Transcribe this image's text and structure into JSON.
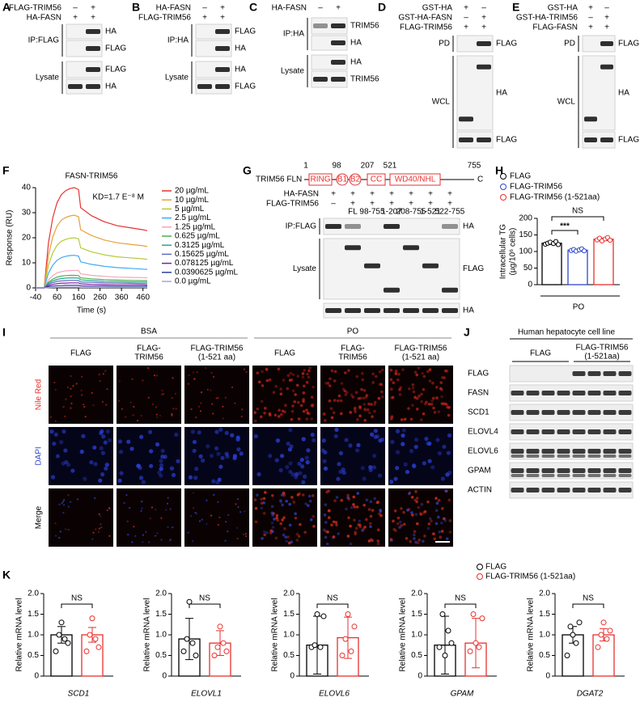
{
  "blots": [
    {
      "panel": "A",
      "conditions": [
        {
          "name": "FLAG-TRIM56",
          "signs": [
            "–",
            "+"
          ]
        },
        {
          "name": "HA-FASN",
          "signs": [
            "+",
            "+"
          ]
        }
      ],
      "groups": [
        {
          "name": "IP:FLAG",
          "bands": [
            "HA",
            "FLAG"
          ]
        },
        {
          "name": "Lysate",
          "bands": [
            "FLAG",
            "HA"
          ]
        }
      ]
    },
    {
      "panel": "B",
      "conditions": [
        {
          "name": "HA-FASN",
          "signs": [
            "–",
            "+"
          ]
        },
        {
          "name": "FLAG-TRIM56",
          "signs": [
            "+",
            "+"
          ]
        }
      ],
      "groups": [
        {
          "name": "IP:HA",
          "bands": [
            "FLAG",
            "HA"
          ]
        },
        {
          "name": "Lysate",
          "bands": [
            "HA",
            "FLAG"
          ]
        }
      ]
    },
    {
      "panel": "C",
      "conditions": [
        {
          "name": "HA-FASN",
          "signs": [
            "–",
            "+"
          ]
        }
      ],
      "groups": [
        {
          "name": "IP:HA",
          "bands": [
            "TRIM56",
            "HA"
          ]
        },
        {
          "name": "Lysate",
          "bands": [
            "HA",
            "TRIM56"
          ]
        }
      ]
    },
    {
      "panel": "D",
      "conditions": [
        {
          "name": "GST-HA",
          "signs": [
            "+",
            "–"
          ]
        },
        {
          "name": "GST-HA-FASN",
          "signs": [
            "–",
            "+"
          ]
        },
        {
          "name": "FLAG-TRIM56",
          "signs": [
            "+",
            "+"
          ]
        }
      ],
      "groups": [
        {
          "name": "PD",
          "bands": [
            "FLAG"
          ]
        },
        {
          "name": "WCL",
          "bands": [
            "HA",
            "FLAG"
          ]
        }
      ]
    },
    {
      "panel": "E",
      "conditions": [
        {
          "name": "GST-HA",
          "signs": [
            "+",
            "–"
          ]
        },
        {
          "name": "GST-HA-TRIM56",
          "signs": [
            "–",
            "+"
          ]
        },
        {
          "name": "FLAG-FASN",
          "signs": [
            "+",
            "+"
          ]
        }
      ],
      "groups": [
        {
          "name": "PD",
          "bands": [
            "FLAG"
          ]
        },
        {
          "name": "WCL",
          "bands": [
            "HA",
            "FLAG"
          ]
        }
      ]
    },
    {
      "panel": "G",
      "conditions": [
        {
          "name": "HA-FASN",
          "signs": [
            "+",
            "+",
            "+",
            "+",
            "+",
            "+",
            "+"
          ]
        },
        {
          "name": "FLAG-TRIM56",
          "signs": [
            "–",
            "+",
            "+",
            "+",
            "+",
            "+",
            "+"
          ]
        }
      ],
      "sub_labels": [
        "FL",
        "98-755",
        "1-207",
        "208-755",
        "1-521",
        "522-755"
      ],
      "groups": [
        {
          "name": "IP:FLAG",
          "bands": [
            "HA"
          ]
        },
        {
          "name": "Lysate",
          "bands": [
            "FLAG"
          ]
        },
        {
          "bands": [
            "HA"
          ]
        }
      ]
    }
  ],
  "panel_g_diagram": {
    "name": "TRIM56 FL",
    "n": "N",
    "c": "C",
    "domains": [
      "RING",
      "B1",
      "B2",
      "CC",
      "WD40/NHL"
    ],
    "positions": [
      "1",
      "98",
      "207",
      "521",
      "755"
    ]
  },
  "panel_i": {
    "label": "I",
    "treatments": [
      "BSA",
      "PO"
    ],
    "columns": [
      [
        "FLAG"
      ],
      [
        "FLAG-",
        "TRIM56"
      ],
      [
        "FLAG-TRIM56",
        "(1-521 aa)"
      ]
    ],
    "rows": [
      "Nile Red",
      "DAPI",
      "Merge"
    ]
  },
  "panel_j": {
    "label": "J",
    "title": "Human hepatocyte cell line",
    "groups": [
      [
        "FLAG"
      ],
      [
        "FLAG-TRIM56",
        "(1-521aa)"
      ]
    ],
    "rows": [
      "FLAG",
      "FASN",
      "SCD1",
      "ELOVL4",
      "ELOVL6",
      "GPAM",
      "ACTIN"
    ]
  },
  "panel_k": {
    "label": "K",
    "legend": [
      {
        "name": "FLAG",
        "color": "#000000"
      },
      {
        "name": "FLAG-TRIM56 (1-521aa)",
        "color": "#e8312f"
      }
    ]
  },
  "chart_data": [
    {
      "panel": "F",
      "type": "line",
      "title": "FASN-TRIM56",
      "annotation": "KD=1.7 E⁻⁸ M",
      "xlabel": "Time (s)",
      "ylabel": "Response (RU)",
      "x": [
        -40,
        0,
        20,
        40,
        60,
        80,
        100,
        120,
        140,
        160,
        170,
        220,
        280,
        340,
        400,
        460,
        480
      ],
      "xlim": [
        -40,
        480
      ],
      "xticks": [
        -40,
        60,
        160,
        260,
        360,
        460
      ],
      "ylim": [
        0,
        40
      ],
      "yticks": [
        0,
        10,
        20,
        30,
        40
      ],
      "series": [
        {
          "name": "20 µg/mL",
          "color": "#e8312f",
          "values": [
            0,
            0,
            18,
            28,
            34,
            37.2,
            38.8,
            39.6,
            40,
            39.2,
            32,
            28.8,
            26.4,
            24.8,
            24,
            23.2,
            22.8
          ]
        },
        {
          "name": "10 µg/mL",
          "color": "#e6a23c",
          "values": [
            0,
            0,
            13,
            20.3,
            24.7,
            27,
            28.1,
            28.7,
            29,
            28.4,
            23.2,
            20.9,
            19.1,
            18,
            17.4,
            16.8,
            16.5
          ]
        },
        {
          "name": "5 µg/mL",
          "color": "#b8c93a",
          "values": [
            0,
            0,
            9,
            14,
            17,
            18.6,
            19.4,
            19.8,
            20,
            19.6,
            16,
            14.4,
            13.2,
            12.4,
            12,
            11.6,
            11.4
          ]
        },
        {
          "name": "2.5 µg/mL",
          "color": "#3fa9f5",
          "values": [
            0,
            0,
            5.9,
            9.1,
            11,
            12.1,
            12.6,
            12.9,
            13,
            12.7,
            10.4,
            9.4,
            8.6,
            8.1,
            7.8,
            7.5,
            7.4
          ]
        },
        {
          "name": "1.25 µg/mL",
          "color": "#f4a6b8",
          "values": [
            0,
            0,
            3.2,
            4.9,
            6,
            6.5,
            6.8,
            6.9,
            7,
            6.9,
            5.6,
            5,
            4.6,
            4.3,
            4.2,
            4.1,
            4
          ]
        },
        {
          "name": "0.625 µg/mL",
          "color": "#4caf50",
          "values": [
            0,
            0,
            2.3,
            3.5,
            4.3,
            4.7,
            4.9,
            5,
            5,
            4.9,
            4,
            3.6,
            3.3,
            3.1,
            3,
            2.9,
            2.9
          ]
        },
        {
          "name": "0.3125 µg/mL",
          "color": "#26a69a",
          "values": [
            0,
            0,
            1.8,
            2.8,
            3.4,
            3.7,
            3.9,
            4,
            4,
            3.9,
            3.2,
            2.9,
            2.6,
            2.5,
            2.4,
            2.3,
            2.3
          ]
        },
        {
          "name": "0.15625 µg/mL",
          "color": "#5c6bc0",
          "values": [
            0,
            0,
            1.4,
            2.1,
            2.6,
            2.8,
            2.9,
            3,
            3,
            2.9,
            2.4,
            2.2,
            2,
            1.9,
            1.8,
            1.7,
            1.7
          ]
        },
        {
          "name": "0.078125 µg/mL",
          "color": "#7b1fa2",
          "values": [
            0,
            0,
            0.9,
            1.4,
            1.7,
            1.9,
            1.9,
            2,
            2,
            2,
            1.6,
            1.4,
            1.3,
            1.2,
            1.2,
            1.2,
            1.1
          ]
        },
        {
          "name": "0.0390625 µg/mL",
          "color": "#303f9f",
          "values": [
            0,
            0,
            0.5,
            0.7,
            0.9,
            0.9,
            1,
            1,
            1,
            1,
            0.8,
            0.7,
            0.7,
            0.6,
            0.6,
            0.6,
            0.6
          ]
        },
        {
          "name": "0.0 µg/mL",
          "color": "#b39ddb",
          "values": [
            0,
            0,
            0.1,
            0.2,
            0.3,
            0.3,
            0.3,
            0.3,
            0.3,
            0.3,
            0.2,
            0.2,
            0.2,
            0.2,
            0.2,
            0.2,
            0.2
          ]
        }
      ]
    },
    {
      "panel": "H",
      "type": "bar",
      "ylabel": [
        "Intracellular TG",
        "(µg/10⁶ cells)"
      ],
      "xlabel": "PO",
      "ylim": [
        0,
        200
      ],
      "yticks": [
        0,
        50,
        100,
        150,
        200
      ],
      "annotations": [
        "***",
        "NS"
      ],
      "series": [
        {
          "name": "FLAG",
          "color": "#000000",
          "values": [
            125
          ],
          "errors": [
            4
          ],
          "points": [
            122,
            125,
            128,
            124,
            130,
            121
          ]
        },
        {
          "name": "FLAG-TRIM56",
          "color": "#2f46c8",
          "values": [
            104
          ],
          "errors": [
            3
          ],
          "points": [
            103,
            106,
            101,
            105,
            108,
            102
          ]
        },
        {
          "name": "FLAG-TRIM56 (1-521aa)",
          "color": "#e8312f",
          "values": [
            137
          ],
          "errors": [
            4
          ],
          "points": [
            135,
            140,
            132,
            138,
            142,
            134
          ]
        }
      ]
    },
    {
      "type": "bar",
      "ylabel": "Relative mRNA level",
      "xlabel": "SCD1",
      "ylim": [
        0,
        2
      ],
      "yticks": [
        0,
        0.5,
        {
          "value": 1,
          "label": "1.0"
        },
        1.5,
        {
          "value": 2,
          "label": "2.0"
        }
      ],
      "annotation": "NS",
      "series": [
        {
          "color": "#000000",
          "values": [
            1.0
          ],
          "errors": [
            0.2
          ],
          "points": [
            0.6,
            1.0,
            1.3,
            0.9,
            0.8
          ]
        },
        {
          "color": "#e8312f",
          "values": [
            1.0
          ],
          "errors": [
            0.18
          ],
          "points": [
            0.6,
            1.0,
            1.4,
            0.9,
            0.7
          ]
        }
      ]
    },
    {
      "type": "bar",
      "ylabel": "Relative mRNA level",
      "xlabel": "ELOVL1",
      "ylim": [
        0,
        2
      ],
      "yticks": [
        0,
        0.5,
        {
          "value": 1,
          "label": "1.0"
        },
        1.5,
        {
          "value": 2,
          "label": "2.0"
        }
      ],
      "annotation": "NS",
      "series": [
        {
          "color": "#000000",
          "values": [
            0.9
          ],
          "errors": [
            0.5
          ],
          "points": [
            0.6,
            0.9,
            1.8,
            0.8,
            0.5
          ]
        },
        {
          "color": "#e8312f",
          "values": [
            0.8
          ],
          "errors": [
            0.3
          ],
          "points": [
            0.5,
            0.7,
            1.2,
            0.8,
            0.6
          ]
        }
      ]
    },
    {
      "type": "bar",
      "ylabel": "Relative mRNA level",
      "xlabel": "ELOVL6",
      "ylim": [
        0,
        2
      ],
      "yticks": [
        0,
        0.5,
        {
          "value": 1,
          "label": "1.0"
        },
        1.5,
        {
          "value": 2,
          "label": "2.0"
        }
      ],
      "annotation": "NS",
      "series": [
        {
          "color": "#000000",
          "values": [
            0.75
          ],
          "errors": [
            0.7
          ],
          "points": [
            0.7,
            0.75,
            1.5,
            0.7,
            1.45
          ]
        },
        {
          "color": "#e8312f",
          "values": [
            0.93
          ],
          "errors": [
            0.5
          ],
          "points": [
            0.5,
            0.9,
            1.5,
            0.6,
            1.2
          ]
        }
      ]
    },
    {
      "type": "bar",
      "ylabel": "Relative mRNA level",
      "xlabel": "GPAM",
      "ylim": [
        0,
        2
      ],
      "yticks": [
        0,
        0.5,
        {
          "value": 1,
          "label": "1.0"
        },
        1.5,
        {
          "value": 2,
          "label": "2.0"
        }
      ],
      "annotation": "NS",
      "series": [
        {
          "color": "#000000",
          "values": [
            0.75
          ],
          "errors": [
            0.7
          ],
          "points": [
            0.7,
            1.5,
            0.5,
            1.1,
            0.8
          ]
        },
        {
          "color": "#e8312f",
          "values": [
            0.8
          ],
          "errors": [
            0.6
          ],
          "points": [
            0.6,
            1.5,
            0.8,
            0.7,
            1.4
          ]
        }
      ]
    },
    {
      "type": "bar",
      "ylabel": "Relative mRNA level",
      "xlabel": "DGAT2",
      "ylim": [
        0,
        2
      ],
      "yticks": [
        0,
        0.5,
        {
          "value": 1,
          "label": "1.0"
        },
        1.5,
        {
          "value": 2,
          "label": "2.0"
        }
      ],
      "annotation": "NS",
      "series": [
        {
          "color": "#000000",
          "values": [
            1.0
          ],
          "errors": [
            0.2
          ],
          "points": [
            0.5,
            1.2,
            1.0,
            0.8,
            1.3
          ]
        },
        {
          "color": "#e8312f",
          "values": [
            1.0
          ],
          "errors": [
            0.15
          ],
          "points": [
            0.7,
            1.0,
            1.3,
            0.9,
            1.1
          ]
        }
      ]
    }
  ]
}
